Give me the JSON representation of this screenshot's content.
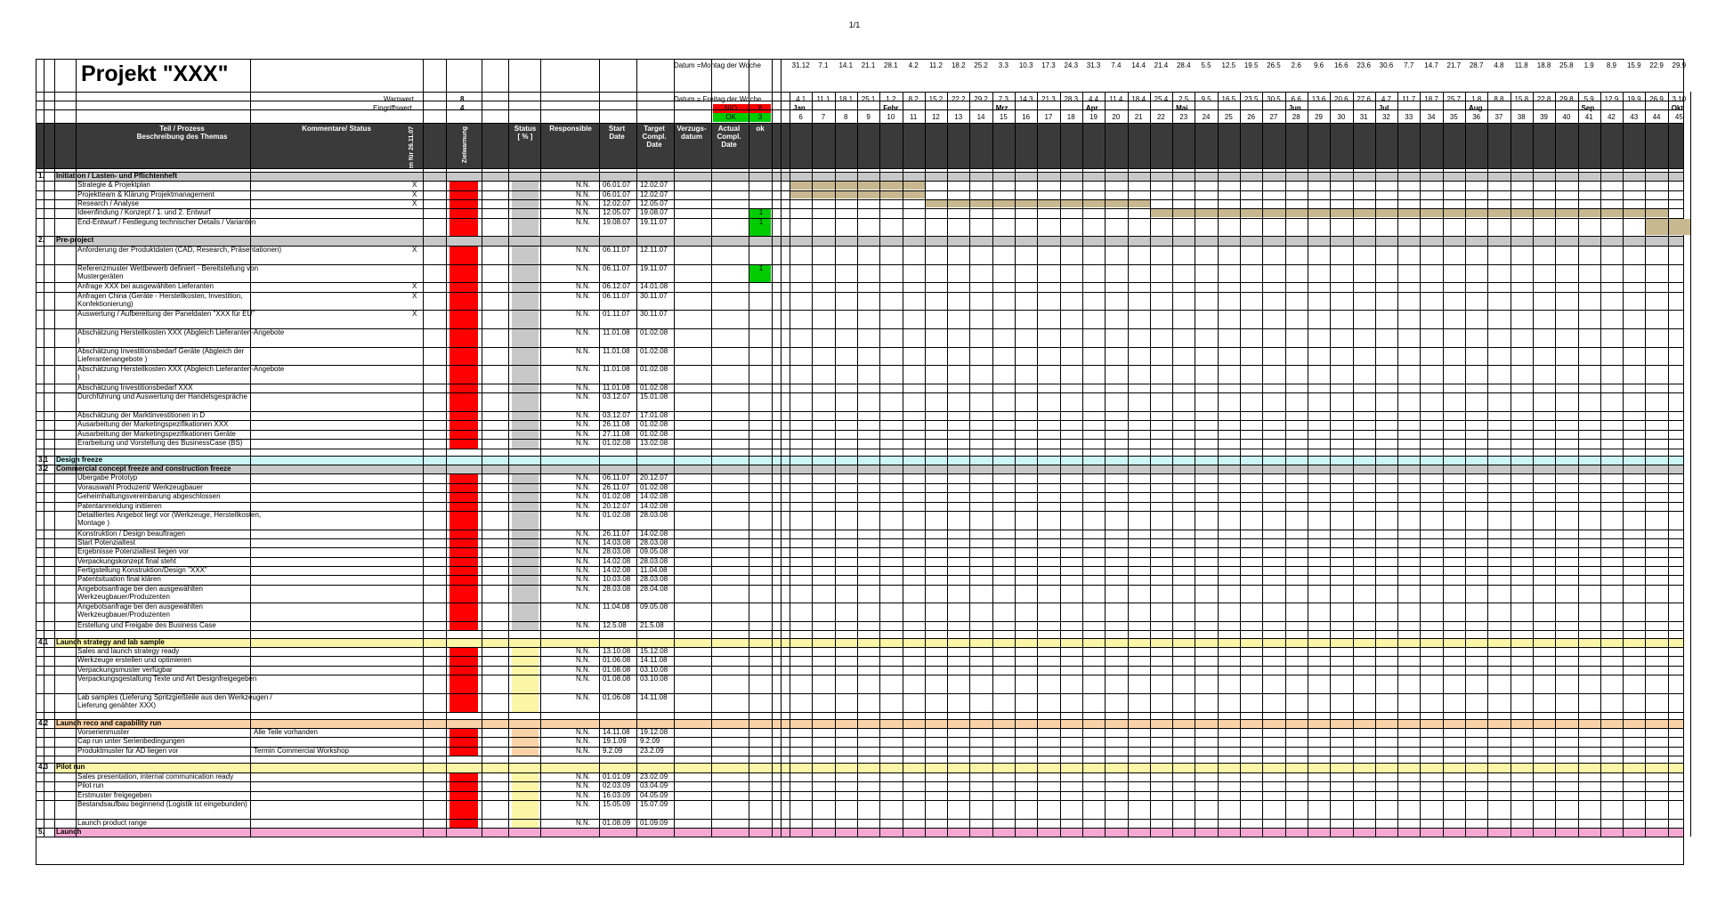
{
  "page_number": "1/1",
  "title": "Projekt \"XXX\"",
  "labels": {
    "datum_montag": "Datum =Montag der Woche",
    "datum_freitag": "Datum = Freitag der Woche",
    "warnwert": "Warnwert",
    "eingriffswert": "Eingriffswert",
    "warnwert_val": "8",
    "eingriffswert_val": "4",
    "nio": "NIO",
    "nio_val": "8",
    "ok": "OK",
    "ok_val": "3"
  },
  "columns": {
    "teil": "Teil / Prozess\nBeschreibung des Themas",
    "kommentare": "Kommentare/ Status",
    "themen": "Themen für 26.11.07",
    "zielwarnung": "Zielwarnung",
    "status": "Status\n[ % ]",
    "responsible": "Responsible",
    "start": "Start\nDate",
    "target": "Target\nCompl.\nDate",
    "verzug": "Verzugs-\ndatum",
    "actual": "Actual\nCompl.\nDate",
    "ok": "ok"
  },
  "timeline": {
    "mondays": [
      "31.12",
      "7.1",
      "14.1",
      "21.1",
      "28.1",
      "4.2",
      "11.2",
      "18.2",
      "25.2",
      "3.3",
      "10.3",
      "17.3",
      "24.3",
      "31.3",
      "7.4",
      "14.4",
      "21.4",
      "28.4",
      "5.5",
      "12.5",
      "19.5",
      "26.5",
      "2.6",
      "9.6",
      "16.6",
      "23.6",
      "30.6",
      "7.7",
      "14.7",
      "21.7",
      "28.7",
      "4.8",
      "11.8",
      "18.8",
      "25.8",
      "1.9",
      "8.9",
      "15.9",
      "22.9",
      "29.9"
    ],
    "fridays": [
      "4.1",
      "11.1",
      "18.1",
      "25.1",
      "1.2",
      "8.2",
      "15.2",
      "22.2",
      "29.2",
      "7.3",
      "14.3",
      "21.3",
      "28.3",
      "4.4",
      "11.4",
      "18.4",
      "25.4",
      "2.5",
      "9.5",
      "16.5",
      "23.5",
      "30.5",
      "6.6",
      "13.6",
      "20.6",
      "27.6",
      "4.7",
      "11.7",
      "18.7",
      "25.7",
      "1.8",
      "8.8",
      "15.8",
      "22.8",
      "29.8",
      "5.9",
      "12.9",
      "19.9",
      "26.9",
      "3.10"
    ],
    "months": [
      {
        "label": "Jan",
        "week": 0
      },
      {
        "label": "Febr.",
        "week": 4
      },
      {
        "label": "Mrz",
        "week": 9
      },
      {
        "label": "Apr",
        "week": 13
      },
      {
        "label": "Mai",
        "week": 17
      },
      {
        "label": "Jun",
        "week": 22
      },
      {
        "label": "Jul",
        "week": 26
      },
      {
        "label": "Aug",
        "week": 30
      },
      {
        "label": "Sep",
        "week": 35
      },
      {
        "label": "Okt",
        "week": 39
      }
    ],
    "weeks": [
      "6",
      "7",
      "8",
      "9",
      "10",
      "11",
      "12",
      "13",
      "14",
      "15",
      "16",
      "17",
      "18",
      "19",
      "20",
      "21",
      "22",
      "23",
      "24",
      "25",
      "26",
      "27",
      "28",
      "29",
      "30",
      "31",
      "32",
      "33",
      "34",
      "35",
      "36",
      "37",
      "38",
      "39",
      "40",
      "41",
      "42",
      "43",
      "44",
      "45"
    ]
  },
  "rows": [
    {
      "type": "section",
      "num": "1.",
      "label": "Initiation / Lasten- und Pflichtenheft",
      "color": "#c8c8c8"
    },
    {
      "type": "task",
      "label": "Strategie & Projektplan",
      "x": "X",
      "resp": "N.N.",
      "start": "06.01.07",
      "target": "12.02.07",
      "color": "#c8c8c8",
      "bar": [
        0,
        6
      ]
    },
    {
      "type": "task",
      "label": "Projektteam & Klärung Projektmanagement",
      "x": "X",
      "resp": "N.N.",
      "start": "06.01.07",
      "target": "12.02.07",
      "color": "#c8c8c8",
      "bar": [
        0,
        6
      ]
    },
    {
      "type": "task",
      "label": "Research / Analyse",
      "x": "X",
      "resp": "N.N.",
      "start": "12.02.07",
      "target": "12.05.07",
      "color": "#c8c8c8",
      "bar": [
        6,
        16
      ]
    },
    {
      "type": "task",
      "label": "Ideenfindung / Konzept / 1. und 2. Entwurf",
      "resp": "N.N.",
      "start": "12.05.07",
      "target": "19.08.07",
      "ok": "1",
      "color": "#c8c8c8",
      "bar": [
        16,
        39
      ]
    },
    {
      "type": "task2",
      "label": "End-Entwurf / Festlegung technischer Details / Varianten",
      "resp": "N.N.",
      "start": "19.08.07",
      "target": "19.11.07",
      "ok": "1",
      "color": "#c8c8c8",
      "bar": [
        38,
        40
      ]
    },
    {
      "type": "section",
      "num": "2.",
      "label": "Pre-project",
      "color": "#c8c8c8"
    },
    {
      "type": "task2",
      "label": "Anforderung der Produktdaten (CAD, Research, Präsentationen)",
      "x": "X",
      "resp": "N.N.",
      "start": "06.11.07",
      "target": "12.11.07",
      "color": "#c8c8c8"
    },
    {
      "type": "task2",
      "label": "Referenzmuster Wettbewerb definiert - Bereitstellung von Mustergeräten",
      "resp": "N.N.",
      "start": "06.11.07",
      "target": "19.11.07",
      "ok": "1",
      "color": "#c8c8c8"
    },
    {
      "type": "task",
      "label": "Anfrage XXX bei ausgewählten Lieferanten",
      "x": "X",
      "resp": "N.N.",
      "start": "06.12.07",
      "target": "14.01.08",
      "color": "#c8c8c8"
    },
    {
      "type": "task2",
      "label": "Anfragen China (Geräte - Herstellkosten, Investition, Konfektionierung)",
      "x": "X",
      "resp": "N.N.",
      "start": "06.11.07",
      "target": "30.11.07",
      "color": "#c8c8c8"
    },
    {
      "type": "task2",
      "label": "Auswertung / Aufbereitung der Paneldaten \"XXX für EU\"",
      "x": "X",
      "resp": "N.N.",
      "start": "01.11.07",
      "target": "30.11.07",
      "color": "#c8c8c8"
    },
    {
      "type": "task2",
      "label": "Abschätzung Herstellkosten XXX (Abgleich Lieferanten-Angebote )",
      "resp": "N.N.",
      "start": "11.01.08",
      "target": "01.02.08",
      "color": "#c8c8c8"
    },
    {
      "type": "task2",
      "label": "Abschätzung Investitionsbedarf Geräte (Abgleich der Lieferantenangebote )",
      "resp": "N.N.",
      "start": "11.01.08",
      "target": "01.02.08",
      "color": "#c8c8c8"
    },
    {
      "type": "task2",
      "label": "Abschätzung Herstellkosten XXX (Abgleich Lieferanten-Angebote )",
      "resp": "N.N.",
      "start": "11.01.08",
      "target": "01.02.08",
      "color": "#c8c8c8"
    },
    {
      "type": "task",
      "label": "Abschätzung Investitionsbedarf XXX",
      "resp": "N.N.",
      "start": "11.01.08",
      "target": "01.02.08",
      "color": "#c8c8c8"
    },
    {
      "type": "task2",
      "label": "Durchführung und Auswertung der Handelsgespräche",
      "resp": "N.N.",
      "start": "03.12.07",
      "target": "15.01.08",
      "color": "#c8c8c8"
    },
    {
      "type": "task",
      "label": "Abschätzung der Marktinvestitionen in D",
      "resp": "N.N.",
      "start": "03.12.07",
      "target": "17.01.08",
      "color": "#c8c8c8"
    },
    {
      "type": "task",
      "label": "Ausarbeitung der Marketingspezifikationen XXX",
      "resp": "N.N.",
      "start": "26.11.08",
      "target": "01.02.08",
      "color": "#c8c8c8"
    },
    {
      "type": "task",
      "label": "Ausarbeitung der Marketingspezifikationen Geräte",
      "resp": "N.N.",
      "start": "27.11.08",
      "target": "01.02.08",
      "color": "#c8c8c8"
    },
    {
      "type": "task",
      "label": "Erarbeitung und Vorstellung des BusinessCase (BS)",
      "resp": "N.N.",
      "start": "01.02.08",
      "target": "13.02.08",
      "color": "#c8c8c8"
    },
    {
      "type": "blank"
    },
    {
      "type": "section",
      "num": "3.1",
      "label": "Design freeze",
      "color": "#ccf5f5"
    },
    {
      "type": "section",
      "num": "3.2",
      "label": "Commercial concept freeze and construction freeze",
      "color": "#c8c8c8"
    },
    {
      "type": "task",
      "label": "Übergabe Prototyp",
      "resp": "N.N.",
      "start": "06.11.07",
      "target": "20.12.07",
      "color": "#c8c8c8"
    },
    {
      "type": "task",
      "label": "Vorauswahl Produzent/ Werkzeugbauer",
      "resp": "N.N.",
      "start": "26.11.07",
      "target": "01.02.08",
      "color": "#c8c8c8"
    },
    {
      "type": "task",
      "label": "Geheimhaltungsvereinbarung abgeschlossen",
      "resp": "N.N.",
      "start": "01.02.08",
      "target": "14.02.08",
      "color": "#c8c8c8"
    },
    {
      "type": "task",
      "label": "Patentanmeldung initiieren",
      "resp": "N.N.",
      "start": "20.12.07",
      "target": "14.02.08",
      "color": "#c8c8c8"
    },
    {
      "type": "task3",
      "label": "Detailliertes Angebot liegt vor (Werkzeuge, Herstellkosten, Montage )",
      "resp": "N.N.",
      "start": "01.02.08",
      "target": "28.03.08",
      "color": "#c8c8c8"
    },
    {
      "type": "task",
      "label": "Konstruktion / Design beauftragen",
      "resp": "N.N.",
      "start": "26.11.07",
      "target": "14.02.08",
      "color": "#c8c8c8"
    },
    {
      "type": "task",
      "label": "Start Potenzialtest",
      "resp": "N.N.",
      "start": "14.03.08",
      "target": "28.03.08",
      "color": "#c8c8c8"
    },
    {
      "type": "task",
      "label": "Ergebnisse Potenzialtest liegen vor",
      "resp": "N.N.",
      "start": "28.03.08",
      "target": "09.05.08",
      "color": "#c8c8c8"
    },
    {
      "type": "task",
      "label": "Verpackungskonzept final steht",
      "resp": "N.N.",
      "start": "14.02.08",
      "target": "28.03.08",
      "color": "#c8c8c8"
    },
    {
      "type": "task",
      "label": "Fertigstellung Konstruktion/Design \"XXX\"",
      "resp": "N.N.",
      "start": "14.02.08",
      "target": "11.04.08",
      "color": "#c8c8c8"
    },
    {
      "type": "task",
      "label": "Patentsituation final klären",
      "resp": "N.N.",
      "start": "10.03.08",
      "target": "28.03.08",
      "color": "#c8c8c8"
    },
    {
      "type": "task3",
      "label": "Angebotsanfrage bei den ausgewählten Werkzeugbauer/Produzenten",
      "resp": "N.N.",
      "start": "28.03.08",
      "target": "28.04.08",
      "color": "#c8c8c8"
    },
    {
      "type": "task3",
      "label": "Angebotsanfrage bei den ausgewählten Werkzeugbauer/Produzenten",
      "resp": "N.N.",
      "start": "11.04.08",
      "target": "09.05.08",
      "color": "#c8c8c8"
    },
    {
      "type": "task",
      "label": "Erstellung und Freigabe des Business Case",
      "resp": "N.N.",
      "start": "12.5.08",
      "target": "21.5.08",
      "color": "#c8c8c8"
    },
    {
      "type": "blank"
    },
    {
      "type": "section",
      "num": "4.1",
      "label": "Launch strategy and lab sample",
      "color": "#fbf5a8"
    },
    {
      "type": "task",
      "label": "Sales and launch strategy ready",
      "resp": "N.N.",
      "start": "13.10.08",
      "target": "15.12.08",
      "color": "#fbf5a8"
    },
    {
      "type": "task",
      "label": "Werkzeuge erstellen und optimieren",
      "resp": "N.N.",
      "start": "01.06.08",
      "target": "14.11.08",
      "color": "#fbf5a8"
    },
    {
      "type": "task",
      "label": "Verpackungsmuster verfügbar",
      "resp": "N.N.",
      "start": "01.08.08",
      "target": "03.10.08",
      "color": "#fbf5a8"
    },
    {
      "type": "task2",
      "label": "Verpackungsgestaltung Texte und Art Designfreigegeben",
      "resp": "N.N.",
      "start": "01.08.08",
      "target": "03.10.08",
      "color": "#fbf5a8"
    },
    {
      "type": "task2",
      "label": "Lab samples (Lieferung Spritzgießteile aus den Werkzeugen / Lieferung genähter XXX)",
      "resp": "N.N.",
      "start": "01.06.08",
      "target": "14.11.08",
      "color": "#fbf5a8"
    },
    {
      "type": "blank"
    },
    {
      "type": "section",
      "num": "4.2",
      "label": "Launch reco and capability run",
      "color": "#fad2a8"
    },
    {
      "type": "task",
      "label": "Vorserienmuster",
      "cm": "Alle Teile vorhanden",
      "resp": "N.N.",
      "start": "14.11.08",
      "target": "19.12.08",
      "color": "#fad2a8"
    },
    {
      "type": "task",
      "label": "Cap run unter Serienbedingungen",
      "resp": "N.N.",
      "start": "19.1.09",
      "target": "9.2.09",
      "color": "#fad2a8"
    },
    {
      "type": "task",
      "label": "Produktmuster für AD liegen vor",
      "cm": "Termin Commercial Workshop",
      "resp": "N.N.",
      "start": "9.2.09",
      "target": "23.2.09",
      "color": "#fad2a8"
    },
    {
      "type": "blank"
    },
    {
      "type": "section",
      "num": "4.3",
      "label": "Pilot run",
      "color": "#fbf5a8"
    },
    {
      "type": "task",
      "label": "Sales presentation, internal communication ready",
      "resp": "N.N.",
      "start": "01.01.09",
      "target": "23.02.09",
      "color": "#fbf5a8"
    },
    {
      "type": "task",
      "label": "Pilot run",
      "resp": "N.N.",
      "start": "02.03.09",
      "target": "03.04.09",
      "color": "#fbf5a8"
    },
    {
      "type": "task",
      "label": "Erstmuster freigegeben",
      "resp": "N.N.",
      "start": "16.03.09",
      "target": "04.05.09",
      "color": "#fbf5a8"
    },
    {
      "type": "task2",
      "label": "Bestandsaufbau beginnend (Logistik ist eingebunden)",
      "resp": "N.N.",
      "start": "15.05.09",
      "target": "15.07.09",
      "color": "#fbf5a8"
    },
    {
      "type": "task",
      "label": "Launch product range",
      "resp": "N.N.",
      "start": "01.08.09",
      "target": "01.09.09",
      "color": "#fbf5a8"
    },
    {
      "type": "section",
      "num": "5.",
      "label": "Launch",
      "color": "#f6a8d2"
    }
  ],
  "colors": {
    "red": "#ff0000",
    "green": "#00cc00",
    "header": "#3a3a3a",
    "bar": "#c8b890",
    "grey": "#c8c8c8"
  }
}
